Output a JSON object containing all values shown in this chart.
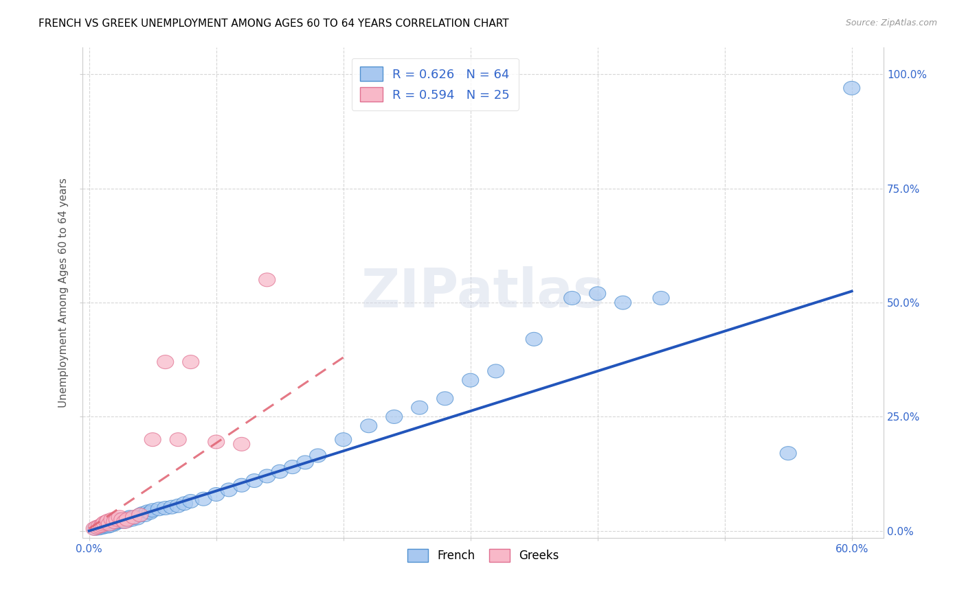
{
  "title": "FRENCH VS GREEK UNEMPLOYMENT AMONG AGES 60 TO 64 YEARS CORRELATION CHART",
  "source": "Source: ZipAtlas.com",
  "ylabel": "Unemployment Among Ages 60 to 64 years",
  "x_tick_labels": [
    "0.0%",
    "",
    "",
    "",
    "",
    "",
    "60.0%"
  ],
  "y_tick_labels_right": [
    "0.0%",
    "25.0%",
    "50.0%",
    "75.0%",
    "100.0%"
  ],
  "xlim": [
    -0.005,
    0.625
  ],
  "ylim": [
    -0.015,
    1.06
  ],
  "french_color": "#a8c8f0",
  "greek_color": "#f8b8c8",
  "french_edge_color": "#5090d0",
  "greek_edge_color": "#e07090",
  "trend_french_color": "#2255bb",
  "trend_greek_color": "#e06070",
  "french_R": 0.626,
  "french_N": 64,
  "greek_R": 0.594,
  "greek_N": 25,
  "watermark": "ZIPatlas",
  "legend_french_label": "R = 0.626   N = 64",
  "legend_greek_label": "R = 0.594   N = 25",
  "legend_bottom_french": "French",
  "legend_bottom_greek": "Greeks",
  "french_x": [
    0.005,
    0.007,
    0.008,
    0.009,
    0.01,
    0.011,
    0.012,
    0.013,
    0.014,
    0.015,
    0.016,
    0.017,
    0.018,
    0.019,
    0.02,
    0.021,
    0.022,
    0.023,
    0.024,
    0.025,
    0.027,
    0.028,
    0.03,
    0.031,
    0.032,
    0.034,
    0.036,
    0.038,
    0.04,
    0.042,
    0.044,
    0.046,
    0.048,
    0.05,
    0.055,
    0.06,
    0.065,
    0.07,
    0.075,
    0.08,
    0.09,
    0.1,
    0.11,
    0.12,
    0.13,
    0.14,
    0.15,
    0.16,
    0.17,
    0.18,
    0.2,
    0.22,
    0.24,
    0.26,
    0.28,
    0.3,
    0.32,
    0.35,
    0.38,
    0.4,
    0.42,
    0.45,
    0.55,
    0.6
  ],
  "french_y": [
    0.005,
    0.008,
    0.006,
    0.01,
    0.012,
    0.008,
    0.01,
    0.015,
    0.012,
    0.01,
    0.015,
    0.012,
    0.018,
    0.02,
    0.015,
    0.018,
    0.022,
    0.02,
    0.025,
    0.022,
    0.02,
    0.025,
    0.022,
    0.028,
    0.03,
    0.025,
    0.03,
    0.028,
    0.035,
    0.038,
    0.035,
    0.042,
    0.04,
    0.045,
    0.048,
    0.05,
    0.052,
    0.055,
    0.06,
    0.065,
    0.07,
    0.08,
    0.09,
    0.1,
    0.11,
    0.12,
    0.13,
    0.14,
    0.15,
    0.165,
    0.2,
    0.23,
    0.25,
    0.27,
    0.29,
    0.33,
    0.35,
    0.42,
    0.51,
    0.52,
    0.5,
    0.51,
    0.17,
    0.97
  ],
  "greek_x": [
    0.004,
    0.006,
    0.008,
    0.01,
    0.011,
    0.012,
    0.014,
    0.015,
    0.016,
    0.018,
    0.02,
    0.022,
    0.024,
    0.026,
    0.028,
    0.03,
    0.035,
    0.04,
    0.05,
    0.06,
    0.07,
    0.08,
    0.1,
    0.12,
    0.14
  ],
  "greek_y": [
    0.005,
    0.008,
    0.01,
    0.012,
    0.015,
    0.018,
    0.02,
    0.022,
    0.015,
    0.025,
    0.02,
    0.025,
    0.03,
    0.025,
    0.02,
    0.025,
    0.03,
    0.035,
    0.2,
    0.37,
    0.2,
    0.37,
    0.195,
    0.19,
    0.55
  ],
  "french_trend_x": [
    0.0,
    0.6
  ],
  "french_trend_y": [
    0.0,
    0.525
  ],
  "greek_trend_x": [
    0.0,
    0.2
  ],
  "greek_trend_y": [
    0.005,
    0.38
  ]
}
